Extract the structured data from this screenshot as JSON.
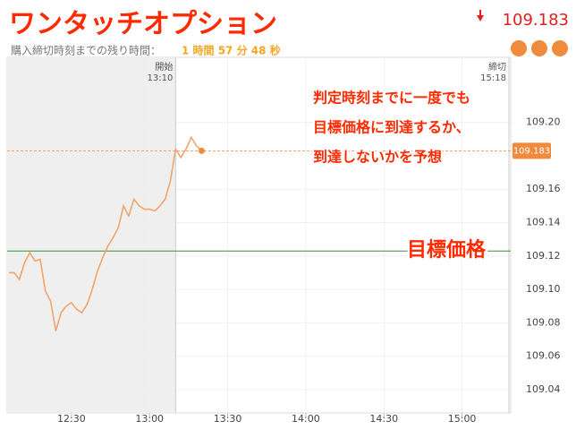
{
  "title": "ワンタッチオプション",
  "header_price": 109.183,
  "remaining_label": "購入締切時刻までの残り時間：",
  "remaining_time": "1 時間 57 分 48 秒",
  "annotations": [
    "判定時刻までに一度でも",
    "目標価格に到達するか、",
    "到達しないかを予想"
  ],
  "target_annotation": "目標価格",
  "chart_data": {
    "type": "line",
    "x": [
      "12:06",
      "12:08",
      "12:10",
      "12:12",
      "12:14",
      "12:16",
      "12:18",
      "12:20",
      "12:22",
      "12:24",
      "12:26",
      "12:28",
      "12:30",
      "12:32",
      "12:34",
      "12:36",
      "12:38",
      "12:40",
      "12:42",
      "12:44",
      "12:46",
      "12:48",
      "12:50",
      "12:52",
      "12:54",
      "12:56",
      "12:58",
      "13:00",
      "13:02",
      "13:04",
      "13:06",
      "13:08",
      "13:10",
      "13:12",
      "13:14",
      "13:16",
      "13:18",
      "13:20"
    ],
    "values": [
      109.11,
      109.11,
      109.106,
      109.116,
      109.122,
      109.117,
      109.118,
      109.099,
      109.093,
      109.075,
      109.086,
      109.09,
      109.092,
      109.088,
      109.086,
      109.091,
      109.1,
      109.111,
      109.119,
      109.126,
      109.131,
      109.137,
      109.15,
      109.144,
      109.154,
      109.15,
      109.148,
      109.148,
      109.147,
      109.15,
      109.154,
      109.165,
      109.184,
      109.179,
      109.184,
      109.191,
      109.186,
      109.183
    ],
    "color": "#f2a46b",
    "current_price": 109.183,
    "current_color": "#f08a3c",
    "target_price": 109.123,
    "target_color": "#3f8f3f",
    "start_label": "開始",
    "start_time": "13:10",
    "end_label": "締切",
    "end_time": "15:18",
    "xlim": [
      "12:06",
      "15:18"
    ],
    "xticks": [
      "12:30",
      "13:00",
      "13:30",
      "14:00",
      "14:30",
      "15:00"
    ],
    "ylim": [
      109.026,
      109.239
    ],
    "yticks": [
      109.04,
      109.06,
      109.08,
      {
        "value": 109.1,
        "label": "109.10"
      },
      109.12,
      109.14,
      109.16,
      {
        "value": 109.2,
        "label": "109.20"
      }
    ],
    "grid": true
  }
}
